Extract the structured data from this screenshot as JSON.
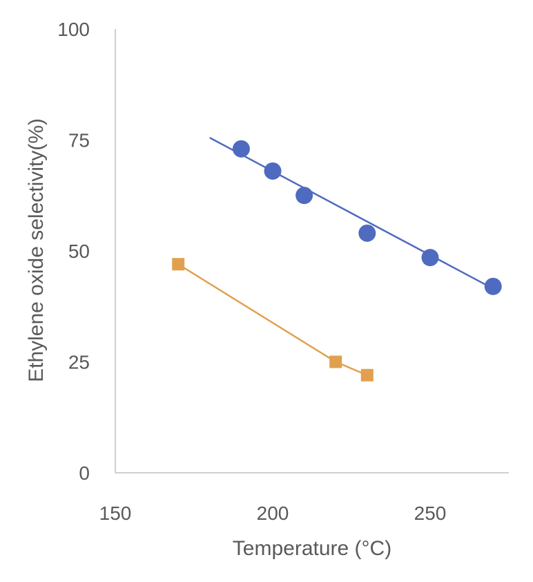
{
  "chart_data": {
    "type": "scatter",
    "title": "",
    "xlabel": "Temperature (°C)",
    "ylabel": "Ethylene oxide selectivity(%)",
    "xlim": [
      150,
      275
    ],
    "ylim": [
      0,
      100
    ],
    "xticks": [
      150,
      200,
      250
    ],
    "yticks": [
      0,
      25,
      50,
      75,
      100
    ],
    "grid": false,
    "series": [
      {
        "marker": "circle",
        "color": "#4f6bbf",
        "points": [
          {
            "x": 190,
            "y": 73
          },
          {
            "x": 200,
            "y": 68
          },
          {
            "x": 210,
            "y": 62.5
          },
          {
            "x": 230,
            "y": 54
          },
          {
            "x": 250,
            "y": 48.5
          },
          {
            "x": 270,
            "y": 42
          }
        ],
        "trendline": {
          "type": "linear",
          "from": {
            "x": 180,
            "y": 75.5
          },
          "to": {
            "x": 270,
            "y": 41.5
          },
          "color": "#4f6bbf"
        }
      },
      {
        "marker": "square",
        "color": "#e1a04f",
        "line_color": "#e1a04f",
        "connected": true,
        "points": [
          {
            "x": 170,
            "y": 47
          },
          {
            "x": 220,
            "y": 25
          },
          {
            "x": 230,
            "y": 22
          }
        ]
      }
    ]
  }
}
